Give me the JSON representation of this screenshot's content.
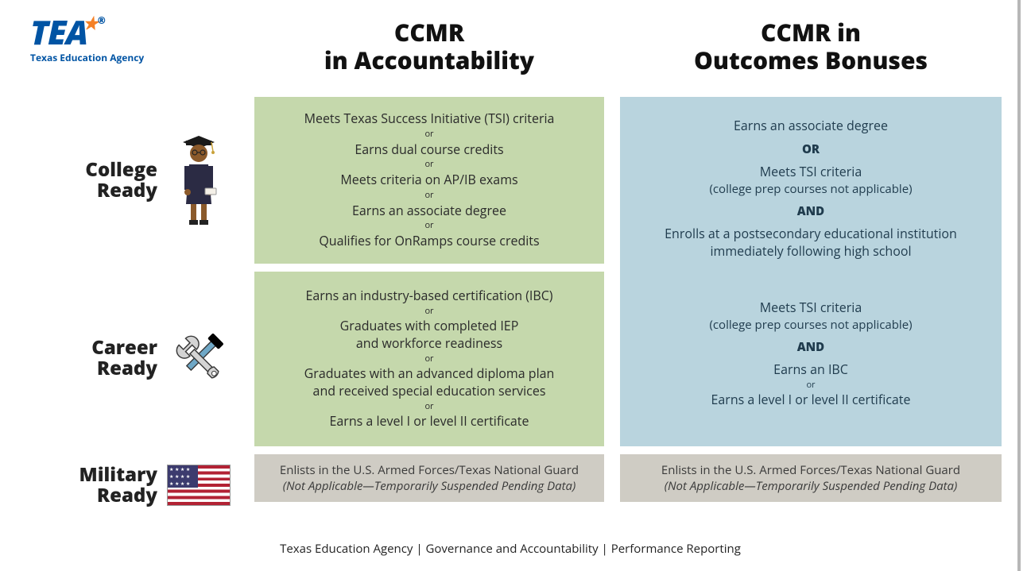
{
  "logo": {
    "acronym": "TEA",
    "full": "Texas Education Agency"
  },
  "columns": {
    "accountability": "CCMR\nin Accountability",
    "bonuses": "CCMR in\nOutcomes Bonuses"
  },
  "rows": {
    "college": "College\nReady",
    "career": "Career\nReady",
    "military": "Military\nReady"
  },
  "accountability": {
    "college": [
      "Meets Texas Success Initiative (TSI) criteria",
      "Earns dual course credits",
      "Meets criteria on AP/IB exams",
      "Earns an associate degree",
      "Qualifies for OnRamps course credits"
    ],
    "career": [
      "Earns an industry-based certification (IBC)",
      "Graduates with completed IEP\nand workforce readiness",
      "Graduates with an advanced diploma plan\nand received special education services",
      "Earns a level I or level II certificate"
    ],
    "military": {
      "line1": "Enlists in the U.S. Armed Forces/Texas National Guard",
      "line2": "(Not Applicable—Temporarily Suspended Pending Data)"
    }
  },
  "bonuses": {
    "college": {
      "l1": "Earns an associate degree",
      "or": "OR",
      "l2": "Meets TSI criteria",
      "l2sub": "(college prep courses not applicable)",
      "and": "AND",
      "l3": "Enrolls at a postsecondary educational institution\nimmediately following high school"
    },
    "career": {
      "l1": "Meets TSI criteria",
      "l1sub": "(college prep courses not applicable)",
      "and": "AND",
      "l2": "Earns an IBC",
      "or_small": "or",
      "l3": "Earns a level I or level II certificate"
    },
    "military": {
      "line1": "Enlists in the U.S. Armed Forces/Texas National Guard",
      "line2": "(Not Applicable—Temporarily Suspended Pending Data)"
    }
  },
  "connectors": {
    "or_small": "or"
  },
  "footer": "Texas Education Agency  |  Governance and Accountability | Performance Reporting",
  "colors": {
    "green": "#c5d8ac",
    "blue": "#b9d4de",
    "gray": "#cfccc4",
    "brand_blue": "#0054a4",
    "brand_orange": "#f58025"
  }
}
